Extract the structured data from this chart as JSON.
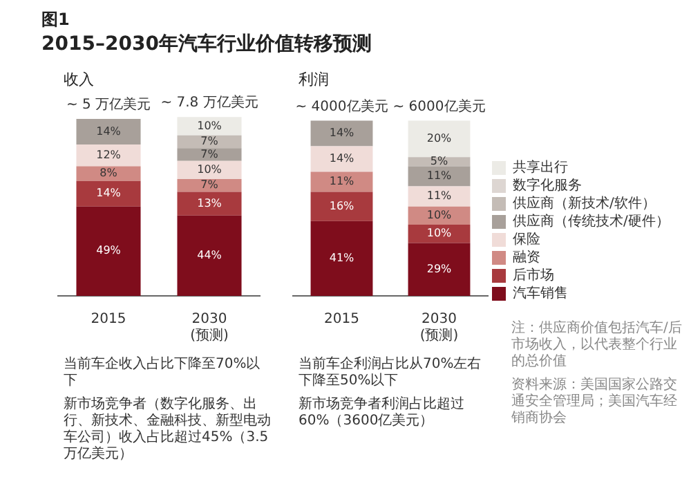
{
  "chart_data": [
    {
      "type": "bar",
      "title": "收入",
      "annotations": [
        "图1",
        "2015–2030年汽车行业价值转移预测",
        {
          "text": "~ 5 万亿美元",
          "x": "2015",
          "y": 97
        },
        {
          "text": "~ 7.8 万亿美元",
          "x": "2030 (预测)",
          "y": 98
        },
        "当前车企收入占比下降至70%以下",
        "新市场竞争者（数字化服务、出行、新技术、金融科技、新型电动车公司）收入占比超过45%（3.5万亿美元）"
      ],
      "categories": [
        "2015",
        "2030 (预测)"
      ],
      "stacked": true,
      "tick_labels": "x",
      "legend": false,
      "series": [
        {
          "color": "#7f0d1c",
          "values": [
            49,
            44
          ],
          "value_labels": [
            "49%",
            "44%"
          ]
        },
        {
          "color": "#a83a3e",
          "values": [
            14,
            13
          ],
          "value_labels": [
            "14%",
            "13%"
          ]
        },
        {
          "color": "#d08a84",
          "values": [
            8,
            7
          ],
          "value_labels": [
            "8%",
            "7%"
          ]
        },
        {
          "color": "#f0dcd8",
          "values": [
            12,
            10
          ],
          "value_labels": [
            "12%",
            "10%"
          ]
        },
        {
          "color": "#a8a09a",
          "values": [
            14,
            7
          ],
          "value_labels": [
            "14%",
            "7%"
          ]
        },
        {
          "color": "#c4bcb6",
          "values": [
            null,
            7
          ],
          "value_labels": [
            null,
            "7%"
          ]
        },
        {
          "color": "#ecebe6",
          "values": [
            null,
            10
          ],
          "value_labels": [
            null,
            "10%"
          ]
        }
      ]
    },
    {
      "type": "bar",
      "title": "利润",
      "annotations": [
        {
          "text": "~ 4000亿美元",
          "x": "2015",
          "y": 96
        },
        {
          "text": "~ 6000亿美元",
          "x": "2030 (预测)",
          "y": 96
        },
        "当前车企利润占比从70%左右下降至50%以下",
        "新市场竞争者利润占比超过60%（3600亿美元）",
        "注：供应商价值包括汽车/后市场收入，以代表整个行业的总价值",
        "资料来源：美国国家公路交通安全管理局；美国汽车经销商协会"
      ],
      "categories": [
        "2015",
        "2030 (预测)"
      ],
      "stacked": true,
      "tick_labels": "x",
      "legend": "right",
      "series": [
        {
          "name": "汽车销售",
          "color": "#7f0d1c",
          "values": [
            41,
            29
          ],
          "value_labels": [
            "41%",
            "29%"
          ]
        },
        {
          "name": "后市场",
          "color": "#a83a3e",
          "values": [
            16,
            10
          ],
          "value_labels": [
            "16%",
            "10%"
          ]
        },
        {
          "name": "融资",
          "color": "#d08a84",
          "values": [
            11,
            10
          ],
          "value_labels": [
            "11%",
            "10%"
          ]
        },
        {
          "name": "保险",
          "color": "#f0dcd8",
          "values": [
            14,
            11
          ],
          "value_labels": [
            "14%",
            "11%"
          ]
        },
        {
          "name": "供应商（传统技术/硬件）",
          "color": "#a8a09a",
          "values": [
            14,
            11
          ],
          "value_labels": [
            "14%",
            "11%"
          ]
        },
        {
          "name": "供应商（新技术/软件）",
          "color": "#c4bcb6",
          "values": [
            null,
            5
          ],
          "value_labels": [
            null,
            "5%"
          ]
        },
        {
          "name": "数字化服务",
          "color": "#ddd6d2",
          "values": [
            null,
            null
          ],
          "value_labels": [
            null,
            null
          ]
        },
        {
          "name": "共享出行",
          "color": "#ecebe6",
          "values": [
            null,
            20
          ],
          "value_labels": [
            null,
            "20%"
          ]
        }
      ]
    }
  ]
}
